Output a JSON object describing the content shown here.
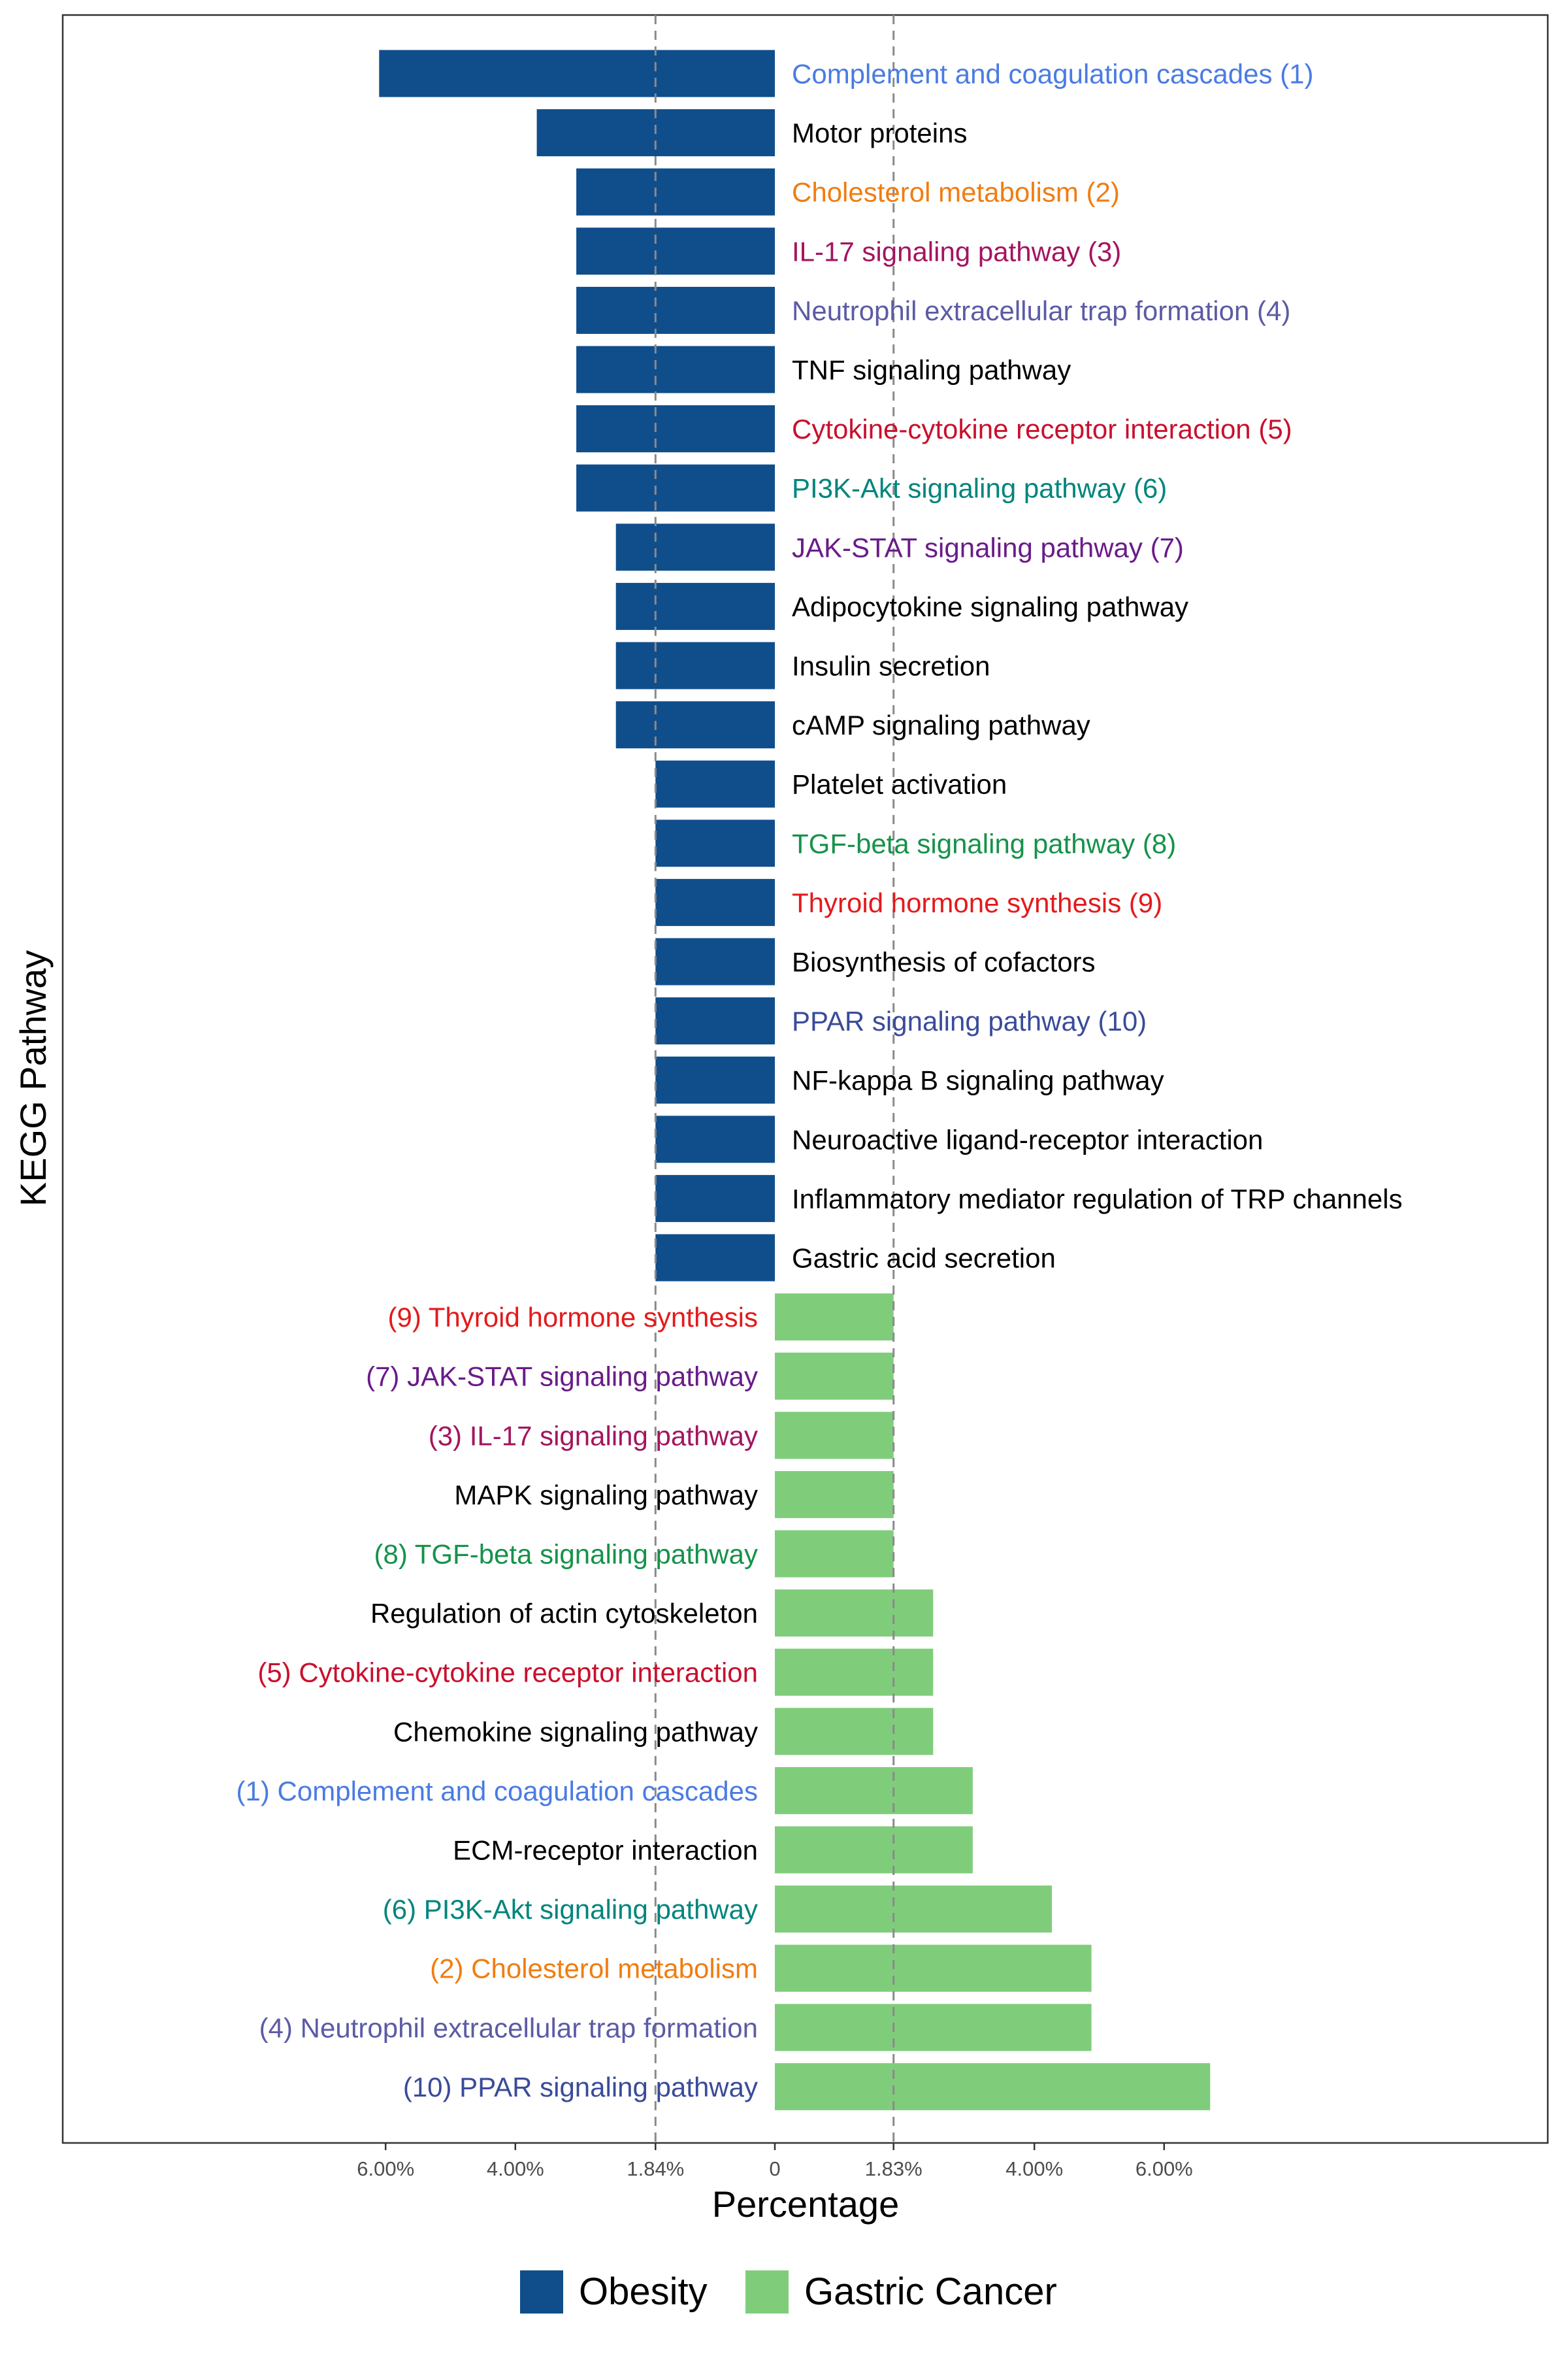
{
  "chart_data": {
    "type": "bar",
    "orientation": "horizontal-diverging",
    "ylabel": "KEGG Pathway",
    "xlabel": "Percentage",
    "xlim": [
      -6.7,
      6.7
    ],
    "xticks": [
      {
        "value": -6.0,
        "label": "6.00%"
      },
      {
        "value": -4.0,
        "label": "4.00%"
      },
      {
        "value": -1.84,
        "label": "1.84%"
      },
      {
        "value": 0,
        "label": "0"
      },
      {
        "value": 1.83,
        "label": "1.83%"
      },
      {
        "value": 4.0,
        "label": "4.00%"
      },
      {
        "value": 6.0,
        "label": "6.00%"
      }
    ],
    "reference_lines": [
      -1.84,
      1.83
    ],
    "grid": false,
    "legend_position": "bottom",
    "series": [
      {
        "name": "Obesity",
        "color": "#104E8B",
        "label_side": "right",
        "bars": [
          {
            "label": "Complement and coagulation cascades (1)",
            "value": 6.1,
            "label_color": "#4A7BE3"
          },
          {
            "label": "Motor proteins",
            "value": 3.67,
            "label_color": "#000000"
          },
          {
            "label": "Cholesterol metabolism (2)",
            "value": 3.06,
            "label_color": "#F07D12"
          },
          {
            "label": "IL-17 signaling pathway (3)",
            "value": 3.06,
            "label_color": "#A3155E"
          },
          {
            "label": "Neutrophil extracellular trap formation (4)",
            "value": 3.06,
            "label_color": "#5B5BA6"
          },
          {
            "label": "TNF signaling pathway",
            "value": 3.06,
            "label_color": "#000000"
          },
          {
            "label": "Cytokine-cytokine receptor interaction (5)",
            "value": 3.06,
            "label_color": "#C8102E"
          },
          {
            "label": "PI3K-Akt signaling pathway (6)",
            "value": 3.06,
            "label_color": "#00857C"
          },
          {
            "label": "JAK-STAT signaling pathway (7)",
            "value": 2.45,
            "label_color": "#6A1B8A"
          },
          {
            "label": "Adipocytokine signaling pathway",
            "value": 2.45,
            "label_color": "#000000"
          },
          {
            "label": "Insulin secretion",
            "value": 2.45,
            "label_color": "#000000"
          },
          {
            "label": "cAMP signaling pathway",
            "value": 2.45,
            "label_color": "#000000"
          },
          {
            "label": "Platelet activation",
            "value": 1.84,
            "label_color": "#000000"
          },
          {
            "label": "TGF-beta signaling pathway (8)",
            "value": 1.84,
            "label_color": "#15924A"
          },
          {
            "label": "Thyroid hormone synthesis (9)",
            "value": 1.84,
            "label_color": "#E31A1C"
          },
          {
            "label": "Biosynthesis of cofactors",
            "value": 1.84,
            "label_color": "#000000"
          },
          {
            "label": "PPAR signaling pathway (10)",
            "value": 1.84,
            "label_color": "#3A4B9A"
          },
          {
            "label": "NF-kappa B signaling pathway",
            "value": 1.84,
            "label_color": "#000000"
          },
          {
            "label": "Neuroactive ligand-receptor interaction",
            "value": 1.84,
            "label_color": "#000000"
          },
          {
            "label": "Inflammatory mediator regulation of TRP channels",
            "value": 1.84,
            "label_color": "#000000"
          },
          {
            "label": "Gastric acid secretion",
            "value": 1.84,
            "label_color": "#000000"
          }
        ]
      },
      {
        "name": "Gastric Cancer",
        "color": "#7FCD7B",
        "label_side": "left",
        "bars": [
          {
            "label": "(9) Thyroid hormone synthesis",
            "value": 1.83,
            "label_color": "#E31A1C"
          },
          {
            "label": "(7) JAK-STAT signaling pathway",
            "value": 1.83,
            "label_color": "#6A1B8A"
          },
          {
            "label": "(3) IL-17 signaling pathway",
            "value": 1.83,
            "label_color": "#A3155E"
          },
          {
            "label": "MAPK signaling pathway",
            "value": 1.83,
            "label_color": "#000000"
          },
          {
            "label": "(8) TGF-beta signaling pathway",
            "value": 1.83,
            "label_color": "#15924A"
          },
          {
            "label": "Regulation of actin cytoskeleton",
            "value": 2.44,
            "label_color": "#000000"
          },
          {
            "label": "(5) Cytokine-cytokine receptor interaction",
            "value": 2.44,
            "label_color": "#C8102E"
          },
          {
            "label": "Chemokine signaling pathway",
            "value": 2.44,
            "label_color": "#000000"
          },
          {
            "label": "(1) Complement and coagulation cascades",
            "value": 3.05,
            "label_color": "#4A7BE3"
          },
          {
            "label": "ECM-receptor interaction",
            "value": 3.05,
            "label_color": "#000000"
          },
          {
            "label": "(6) PI3K-Akt signaling pathway",
            "value": 4.27,
            "label_color": "#00857C"
          },
          {
            "label": "(2) Cholesterol metabolism",
            "value": 4.88,
            "label_color": "#F07D12"
          },
          {
            "label": "(4) Neutrophil extracellular trap formation",
            "value": 4.88,
            "label_color": "#5B5BA6"
          },
          {
            "label": "(10) PPAR signaling pathway",
            "value": 6.71,
            "label_color": "#3A4B9A"
          }
        ]
      }
    ]
  }
}
